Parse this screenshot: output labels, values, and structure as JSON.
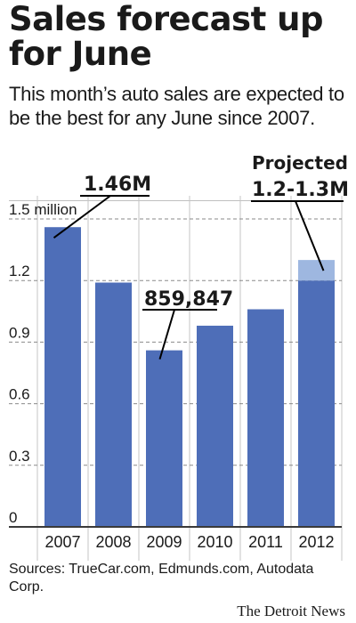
{
  "header": {
    "title": "Sales forecast up for June",
    "subtitle": "This month’s auto sales are expected to be the best for any June since 2007."
  },
  "chart_data": {
    "type": "bar",
    "title": "Sales forecast up for June",
    "categories": [
      "2007",
      "2008",
      "2009",
      "2010",
      "2011",
      "2012"
    ],
    "series": [
      {
        "values": [
          1.46,
          1.19,
          0.86,
          0.98,
          1.06,
          1.2
        ]
      }
    ],
    "projected_range": {
      "category": "2012",
      "low": 1.2,
      "high": 1.3,
      "label_line1": "Projected",
      "label_line2": "1.2-1.3M"
    },
    "annotations": [
      {
        "category": "2007",
        "text": "1.46M"
      },
      {
        "category": "2009",
        "text": "859,847"
      }
    ],
    "yticks": [
      0,
      0.3,
      0.6,
      0.9,
      1.2,
      1.5
    ],
    "ytick_labels": [
      "0",
      "0.3",
      "0.6",
      "0.9",
      "1.2",
      "1.5 million"
    ],
    "ylim": [
      0,
      1.5
    ],
    "xlabel": "",
    "ylabel": "",
    "grid": true,
    "colors": {
      "bar": "#4e6eb8",
      "projected": "#9eb7e0",
      "grid": "#8a8a8a",
      "axis": "#3a3a3a",
      "text": "#1a1a1a"
    }
  },
  "footer": {
    "source": "Sources: TrueCar.com, Edmunds.com, Autodata Corp.",
    "credit": "The Detroit News"
  }
}
